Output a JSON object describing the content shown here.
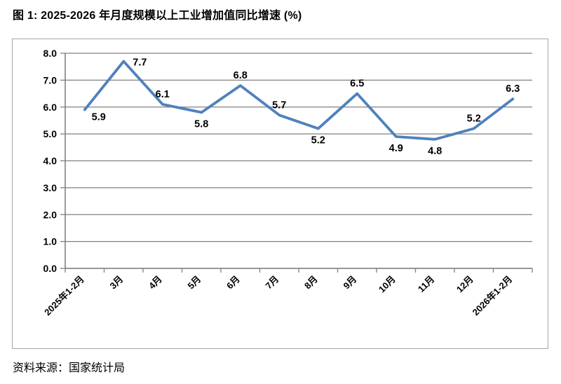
{
  "title": "图 1: 2025-2026 年月度规模以上工业增加值同比增速 (%)",
  "source_note": "资料来源：国家统计局",
  "colors": {
    "line": "#4F81BD",
    "grid": "#808080",
    "axis": "#808080",
    "frame_border": "#A6A6A6",
    "text": "#000000"
  },
  "chart_data": {
    "type": "line",
    "title": "图 1: 2025-2026 年月度规模以上工业增加值同比增速 (%)",
    "categories": [
      "2025年1-2月",
      "3月",
      "4月",
      "5月",
      "6月",
      "7月",
      "8月",
      "9月",
      "10月",
      "11月",
      "12月",
      "2026年1-2月"
    ],
    "values": [
      5.9,
      7.7,
      6.1,
      5.8,
      6.8,
      5.7,
      5.2,
      6.5,
      4.9,
      4.8,
      5.2,
      6.3
    ],
    "data_labels": [
      "5.9",
      "7.7",
      "6.1",
      "5.8",
      "6.8",
      "5.7",
      "5.2",
      "6.5",
      "4.9",
      "4.8",
      "5.2",
      "6.3"
    ],
    "label_placements": [
      "below-right",
      "right",
      "above",
      "below",
      "above",
      "above",
      "below",
      "above",
      "below",
      "below",
      "above",
      "above"
    ],
    "xlabel": "",
    "ylabel": "",
    "ylim": [
      0,
      8
    ],
    "ytick_step": 1,
    "ytick_labels": [
      "0.0",
      "1.0",
      "2.0",
      "3.0",
      "4.0",
      "5.0",
      "6.0",
      "7.0",
      "8.0"
    ],
    "grid": true,
    "legend": "none",
    "line_color": "#4F81BD",
    "x_tick_rotation_deg": 45,
    "source_note": "资料来源：国家统计局"
  }
}
